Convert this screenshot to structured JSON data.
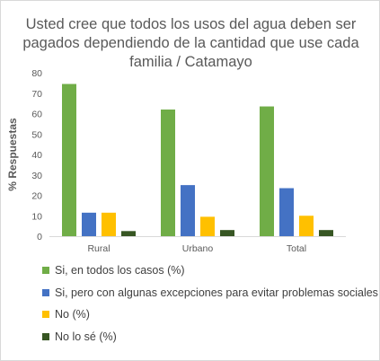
{
  "chart_data": {
    "type": "bar",
    "title": "Usted cree que todos los usos del agua deben ser pagados dependiendo de la cantidad que use cada familia / Catamayo",
    "ylabel": "% Respuestas",
    "xlabel": "",
    "ylim": [
      0,
      80
    ],
    "yticks": [
      0,
      10,
      20,
      30,
      40,
      50,
      60,
      70,
      80
    ],
    "grid": false,
    "legend_position": "bottom",
    "categories": [
      "Rural",
      "Urbano",
      "Total"
    ],
    "series": [
      {
        "name": "Si, en todos los casos (%)",
        "color": "#70ad47",
        "values": [
          74.5,
          62.0,
          63.5
        ]
      },
      {
        "name": "Si, pero con algunas excepciones para evitar problemas sociales (%)",
        "color": "#4472c4",
        "values": [
          11.5,
          25.0,
          23.5
        ]
      },
      {
        "name": "No (%)",
        "color": "#ffc000",
        "values": [
          11.5,
          9.5,
          10.0
        ]
      },
      {
        "name": "No lo sé (%)",
        "color": "#375623",
        "values": [
          2.5,
          3.0,
          3.0
        ]
      }
    ]
  }
}
